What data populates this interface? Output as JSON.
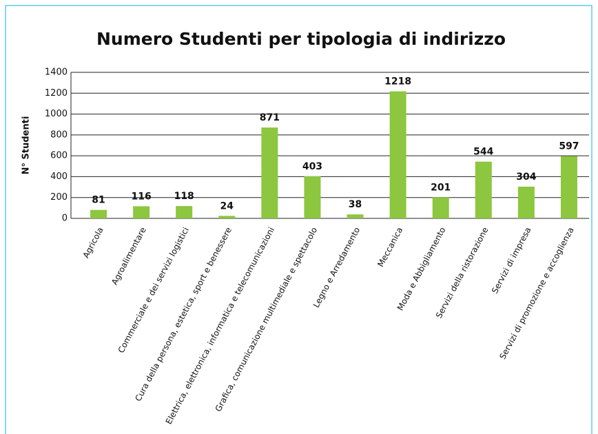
{
  "chart_data": {
    "type": "bar",
    "title": "Numero Studenti per tipologia di indirizzo",
    "ylabel": "N° Studenti",
    "categories": [
      "Agricola",
      "Agroalimentare",
      "Commerciale e dei servizi logistici",
      "Cura della persona, estetica, sport e benessere",
      "Elettrica, elettronica, informatica e telecomunicazioni",
      "Grafica, comunicazione multimediale e spettacolo",
      "Legno e Arredamento",
      "Meccanica",
      "Moda e Abbigliamento",
      "Servizi della ristorazione",
      "Servizi di impresa",
      "Servizi di promozione e accoglienza"
    ],
    "values": [
      81,
      116,
      118,
      24,
      871,
      403,
      38,
      1218,
      201,
      544,
      304,
      597
    ],
    "color": "#8dc63f",
    "ylim": [
      0,
      1400
    ],
    "yticks": [
      0,
      200,
      400,
      600,
      800,
      1000,
      1200,
      1400
    ],
    "grid": true
  }
}
